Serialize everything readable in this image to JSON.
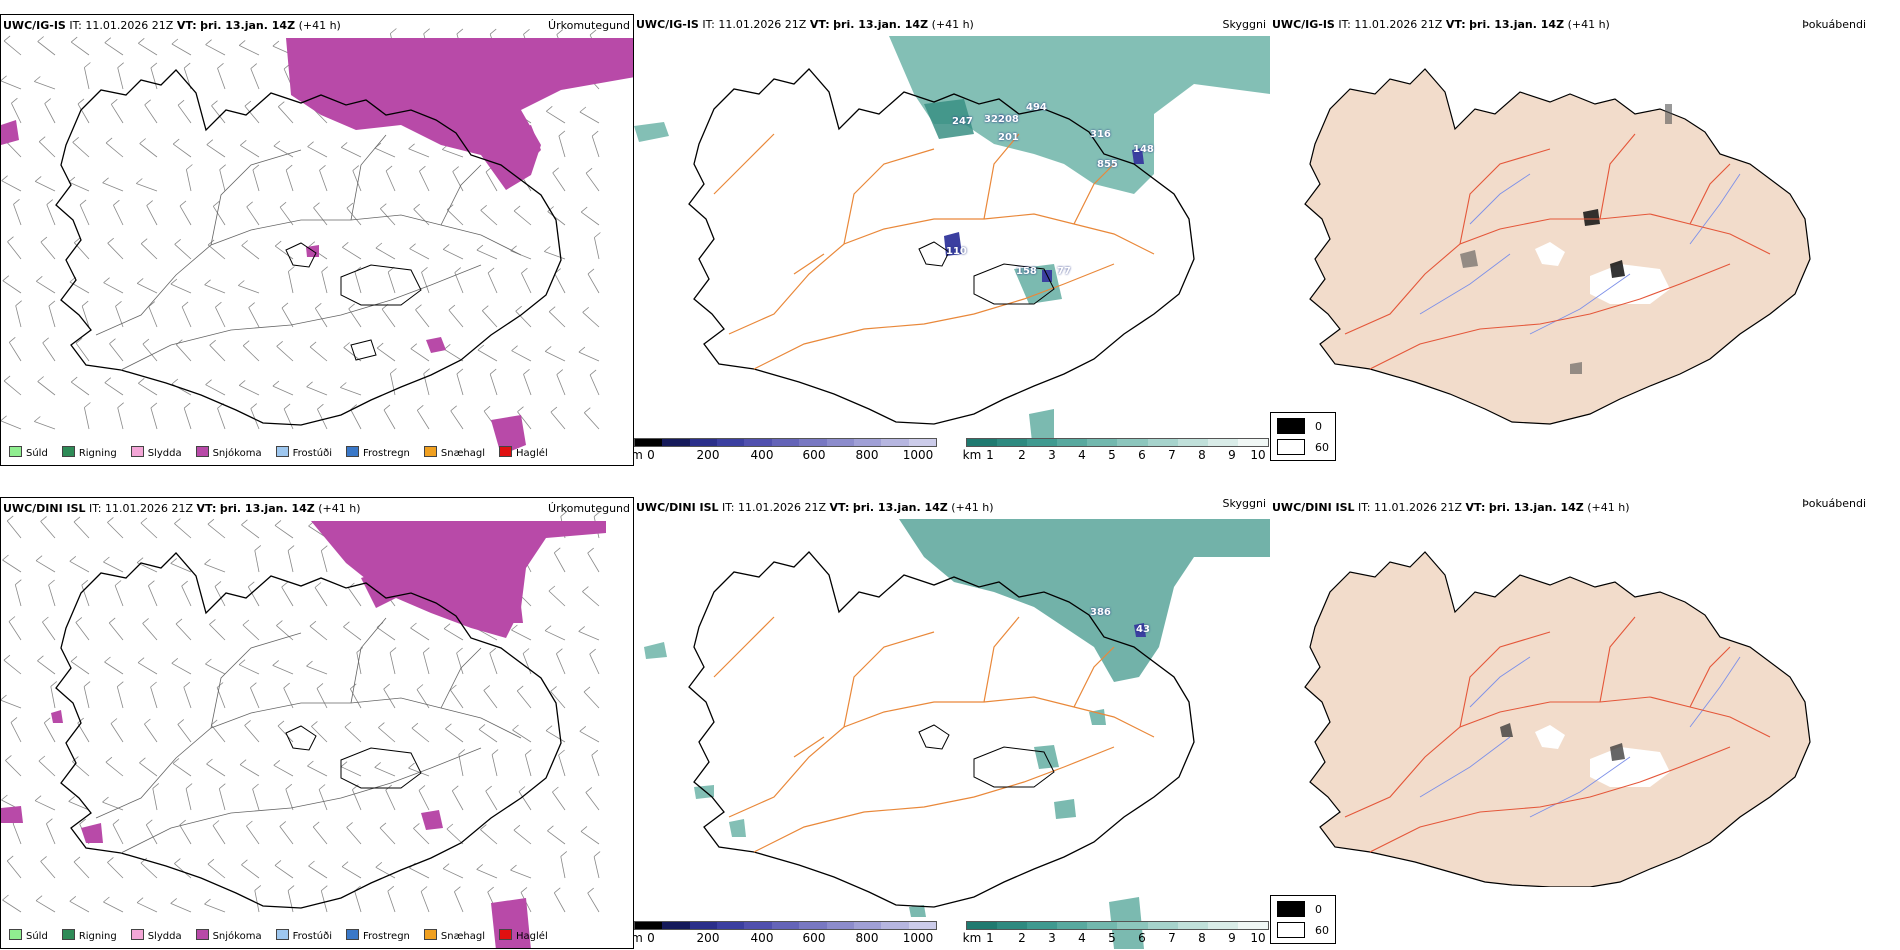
{
  "row1": {
    "precip": {
      "model": "UWC/IG-IS",
      "it_label": "IT:",
      "it": "11.01.2026 21Z",
      "vt_label": "VT:",
      "vt": "þri. 13.jan. 14Z",
      "lead": "(+41 h)",
      "title": "Úrkomutegund"
    },
    "vis": {
      "model": "UWC/IG-IS",
      "it_label": "IT:",
      "it": "11.01.2026 21Z",
      "vt_label": "VT:",
      "vt": "þri. 13.jan. 14Z",
      "lead": "(+41 h)",
      "title": "Skyggni",
      "values": [
        "247",
        "322",
        "208",
        "201",
        "494",
        "316",
        "855",
        "148",
        "110",
        "158",
        "77"
      ]
    },
    "fog": {
      "model": "UWC/IG-IS",
      "it_label": "IT:",
      "it": "11.01.2026 21Z",
      "vt_label": "VT:",
      "vt": "þri. 13.jan. 14Z",
      "lead": "(+41 h)",
      "title": "Þokuábendi"
    }
  },
  "row2": {
    "precip": {
      "model": "UWC/DINI ISL",
      "it_label": "IT:",
      "it": "11.01.2026 21Z",
      "vt_label": "VT:",
      "vt": "þri. 13.jan. 14Z",
      "lead": "(+41 h)",
      "title": "Úrkomutegund"
    },
    "vis": {
      "model": "UWC/DINI ISL",
      "it_label": "IT:",
      "it": "11.01.2026 21Z",
      "vt_label": "VT:",
      "vt": "þri. 13.jan. 14Z",
      "lead": "(+41 h)",
      "title": "Skyggni",
      "values": [
        "386",
        "43"
      ]
    },
    "fog": {
      "model": "UWC/DINI ISL",
      "it_label": "IT:",
      "it": "11.01.2026 21Z",
      "vt_label": "VT:",
      "vt": "þri. 13.jan. 14Z",
      "lead": "(+41 h)",
      "title": "Þokuábendi"
    }
  },
  "precip_legend": [
    {
      "label": "Súld",
      "color": "#90ee90"
    },
    {
      "label": "Rigning",
      "color": "#2e8b57"
    },
    {
      "label": "Slydda",
      "color": "#f4a6d7"
    },
    {
      "label": "Snjókoma",
      "color": "#b84aa8"
    },
    {
      "label": "Frostúði",
      "color": "#9ec7ef"
    },
    {
      "label": "Frostregn",
      "color": "#3a78c8"
    },
    {
      "label": "Snæhagl",
      "color": "#f0a020"
    },
    {
      "label": "Haglél",
      "color": "#e01010"
    }
  ],
  "vis_colorbar_m": {
    "unit": "m",
    "ticks": [
      "0",
      "200",
      "400",
      "600",
      "800",
      "1000"
    ],
    "colors": [
      "#000000",
      "#151a5a",
      "#2a2f8a",
      "#3b3fa0",
      "#5050ae",
      "#6464b8",
      "#7878c2",
      "#8c8ccc",
      "#a0a0d6",
      "#b6b6e0",
      "#ccccea"
    ]
  },
  "vis_colorbar_km": {
    "unit": "km",
    "ticks": [
      "1",
      "2",
      "3",
      "4",
      "5",
      "6",
      "7",
      "8",
      "9",
      "10"
    ],
    "colors": [
      "#1f7a70",
      "#2e8a80",
      "#3f9a90",
      "#58a99f",
      "#72b8ae",
      "#8cc6bd",
      "#a6d3cc",
      "#c0e0da",
      "#d9ece8",
      "#f0f7f5"
    ]
  },
  "fog_legend": [
    {
      "label": "0",
      "color": "#000000"
    },
    {
      "label": "60",
      "color": "#ffffff"
    }
  ]
}
